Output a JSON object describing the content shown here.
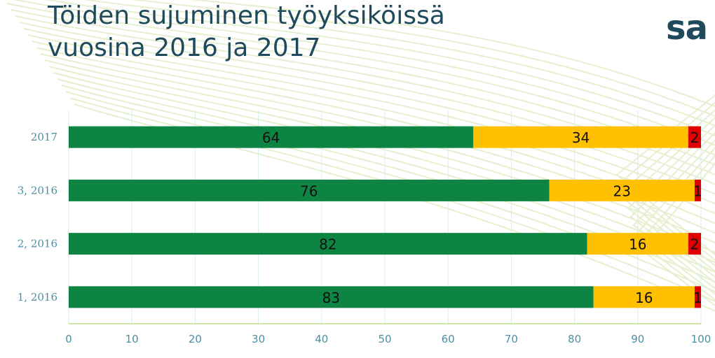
{
  "header": {
    "title_line1": "Töiden sujuminen työyksiköissä",
    "title_line2": "vuosina 2016 ja 2017"
  },
  "logo": {
    "text": "sa"
  },
  "colors": {
    "title": "#1e4a5c",
    "axis_text": "#4a8fa3",
    "gridline": "#d9ecef",
    "axis_line": "#c2dc8a",
    "decoration": "#e6efcf"
  },
  "chart_data": {
    "type": "bar",
    "orientation": "horizontal",
    "stacked": true,
    "categories": [
      "2017",
      "3, 2016",
      "2, 2016",
      "1, 2016"
    ],
    "series": [
      {
        "color": "#0e8442",
        "values": [
          64,
          76,
          82,
          83
        ]
      },
      {
        "color": "#ffc000",
        "values": [
          34,
          23,
          16,
          16
        ]
      },
      {
        "color": "#e00000",
        "values": [
          2,
          1,
          2,
          1
        ]
      }
    ],
    "xlim": [
      0,
      100
    ],
    "xticks": [
      0,
      10,
      20,
      30,
      40,
      50,
      60,
      70,
      80,
      90,
      100
    ],
    "data_labels": true,
    "grid": "vertical",
    "legend": "none"
  }
}
